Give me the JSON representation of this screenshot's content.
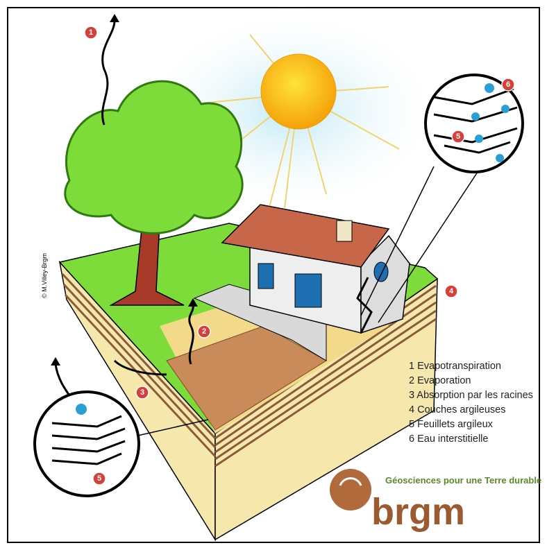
{
  "credit": "© M.Villey-Brgm",
  "badges": [
    "1",
    "2",
    "3",
    "4",
    "5",
    "6",
    "5"
  ],
  "legend": [
    "1 Evapotranspiration",
    "2 Evaporation",
    "3 Absorption par les racines",
    "4 Couches argileuses",
    "5 Feuillets argileux",
    "6 Eau interstitielle"
  ],
  "logo": {
    "tagline": "Géosciences pour une Terre durable",
    "name": "brgm"
  }
}
